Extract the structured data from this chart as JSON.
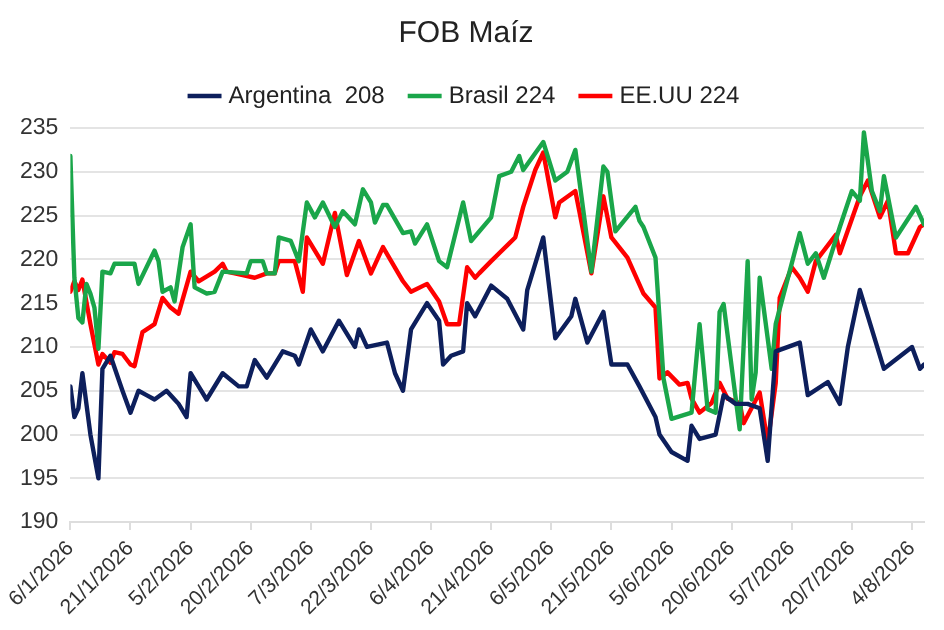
{
  "chart_data": {
    "type": "line",
    "title": "FOB Maíz",
    "xlim": [
      "2026-01-06",
      "2026-08-07"
    ],
    "xticks": [
      {
        "value": "2026-01-06",
        "label": "6/1/2026"
      },
      {
        "value": "2026-01-21",
        "label": "21/1/2026"
      },
      {
        "value": "2026-02-05",
        "label": "5/2/2026"
      },
      {
        "value": "2026-02-20",
        "label": "20/2/2026"
      },
      {
        "value": "2026-03-07",
        "label": "7/3/2026"
      },
      {
        "value": "2026-03-22",
        "label": "22/3/2026"
      },
      {
        "value": "2026-04-06",
        "label": "6/4/2026"
      },
      {
        "value": "2026-04-21",
        "label": "21/4/2026"
      },
      {
        "value": "2026-05-06",
        "label": "6/5/2026"
      },
      {
        "value": "2026-05-21",
        "label": "21/5/2026"
      },
      {
        "value": "2026-06-05",
        "label": "5/6/2026"
      },
      {
        "value": "2026-06-20",
        "label": "20/6/2026"
      },
      {
        "value": "2026-07-05",
        "label": "5/7/2026"
      },
      {
        "value": "2026-07-20",
        "label": "20/7/2026"
      },
      {
        "value": "2026-08-04",
        "label": "4/8/2026"
      }
    ],
    "ylim": [
      190,
      235
    ],
    "yticks": [
      190,
      195,
      200,
      205,
      210,
      215,
      220,
      225,
      230,
      235
    ],
    "grid": "y",
    "legend": "top",
    "marker": "none",
    "line_style": "solid",
    "series": [
      {
        "name": "Argentina  208",
        "color": "#0d1f5c",
        "x": [
          "2026-01-06",
          "2026-01-07",
          "2026-01-08",
          "2026-01-09",
          "2026-01-11",
          "2026-01-13",
          "2026-01-14",
          "2026-01-16",
          "2026-01-19",
          "2026-01-21",
          "2026-01-23",
          "2026-01-25",
          "2026-01-27",
          "2026-01-30",
          "2026-02-01",
          "2026-02-02",
          "2026-02-04",
          "2026-02-05",
          "2026-02-07",
          "2026-02-09",
          "2026-02-13",
          "2026-02-17",
          "2026-02-19",
          "2026-02-21",
          "2026-02-24",
          "2026-02-28",
          "2026-03-03",
          "2026-03-04",
          "2026-03-07",
          "2026-03-10",
          "2026-03-14",
          "2026-03-18",
          "2026-03-19",
          "2026-03-21",
          "2026-03-26",
          "2026-03-28",
          "2026-03-30",
          "2026-04-01",
          "2026-04-05",
          "2026-04-08",
          "2026-04-09",
          "2026-04-11",
          "2026-04-14",
          "2026-04-15",
          "2026-04-17",
          "2026-04-21",
          "2026-04-25",
          "2026-04-29",
          "2026-04-30",
          "2026-05-04",
          "2026-05-07",
          "2026-05-11",
          "2026-05-12",
          "2026-05-15",
          "2026-05-19",
          "2026-05-21",
          "2026-05-25",
          "2026-05-28",
          "2026-06-01",
          "2026-06-02",
          "2026-06-05",
          "2026-06-09",
          "2026-06-10",
          "2026-06-12",
          "2026-06-16",
          "2026-06-18",
          "2026-06-21",
          "2026-06-24",
          "2026-06-27",
          "2026-06-29",
          "2026-07-01",
          "2026-07-07",
          "2026-07-09",
          "2026-07-14",
          "2026-07-17",
          "2026-07-19",
          "2026-07-22",
          "2026-07-24",
          "2026-07-28",
          "2026-08-04",
          "2026-08-06",
          "2026-08-07"
        ],
        "values": [
          205.5,
          202,
          203,
          207,
          200,
          195,
          207.5,
          209,
          205,
          202.5,
          205,
          204.5,
          204,
          205,
          204,
          203.5,
          202,
          207,
          205.5,
          204,
          207,
          205.5,
          205.5,
          208.5,
          206.5,
          209.5,
          209,
          208,
          212,
          209.5,
          213,
          210,
          212,
          210,
          210.5,
          207,
          205,
          212,
          215,
          213,
          208,
          209,
          209.5,
          215,
          213.5,
          217,
          215.5,
          212,
          216.5,
          222.5,
          211,
          213.5,
          215.5,
          210.5,
          214,
          208,
          208,
          205.5,
          202,
          200,
          198,
          197,
          201,
          199.5,
          200,
          204.5,
          203.5,
          203.5,
          203,
          197,
          209.5,
          210.5,
          204.5,
          206,
          203.5,
          210,
          216.5,
          213.5,
          207.5,
          210,
          207.5,
          208
        ]
      },
      {
        "name": "Brasil 224",
        "color": "#1aa64a",
        "x": [
          "2026-01-06",
          "2026-01-07",
          "2026-01-08",
          "2026-01-09",
          "2026-01-10",
          "2026-01-11",
          "2026-01-12",
          "2026-01-13",
          "2026-01-14",
          "2026-01-16",
          "2026-01-17",
          "2026-01-22",
          "2026-01-23",
          "2026-01-27",
          "2026-01-28",
          "2026-01-29",
          "2026-01-31",
          "2026-02-01",
          "2026-02-03",
          "2026-02-05",
          "2026-02-06",
          "2026-02-09",
          "2026-02-11",
          "2026-02-13",
          "2026-02-19",
          "2026-02-20",
          "2026-02-23",
          "2026-02-24",
          "2026-02-26",
          "2026-02-27",
          "2026-03-02",
          "2026-03-04",
          "2026-03-06",
          "2026-03-08",
          "2026-03-10",
          "2026-03-13",
          "2026-03-15",
          "2026-03-18",
          "2026-03-20",
          "2026-03-22",
          "2026-03-23",
          "2026-03-25",
          "2026-03-26",
          "2026-03-30",
          "2026-04-01",
          "2026-04-02",
          "2026-04-05",
          "2026-04-08",
          "2026-04-10",
          "2026-04-14",
          "2026-04-16",
          "2026-04-21",
          "2026-04-23",
          "2026-04-26",
          "2026-04-28",
          "2026-04-29",
          "2026-05-04",
          "2026-05-07",
          "2026-05-10",
          "2026-05-12",
          "2026-05-16",
          "2026-05-19",
          "2026-05-20",
          "2026-05-22",
          "2026-05-27",
          "2026-05-28",
          "2026-05-29",
          "2026-06-01",
          "2026-06-03",
          "2026-06-05",
          "2026-06-10",
          "2026-06-12",
          "2026-06-14",
          "2026-06-16",
          "2026-06-17",
          "2026-06-18",
          "2026-06-22",
          "2026-06-24",
          "2026-06-25",
          "2026-06-26",
          "2026-06-27",
          "2026-06-30",
          "2026-07-01",
          "2026-07-07",
          "2026-07-09",
          "2026-07-11",
          "2026-07-13",
          "2026-07-17",
          "2026-07-20",
          "2026-07-22",
          "2026-07-23",
          "2026-07-25",
          "2026-07-27",
          "2026-07-28",
          "2026-07-31",
          "2026-08-05",
          "2026-08-07"
        ],
        "values": [
          231.8,
          217.9,
          213.3,
          212.8,
          217.2,
          216.1,
          214.5,
          209.8,
          218.6,
          218.4,
          219.5,
          219.5,
          217.2,
          221,
          219.8,
          216.3,
          216.8,
          215.2,
          221.4,
          224,
          216.8,
          216.1,
          216.3,
          218.6,
          218.4,
          219.8,
          219.8,
          218.4,
          218.4,
          222.5,
          222.1,
          219.8,
          226.5,
          224.8,
          226.5,
          223.7,
          225.5,
          224,
          228,
          226.5,
          224.2,
          226.2,
          226.2,
          223,
          223.2,
          221.8,
          224,
          219.8,
          219.1,
          226.5,
          222.1,
          224.8,
          229.5,
          230,
          231.8,
          230.2,
          233.4,
          229,
          230,
          232.5,
          218.6,
          230.6,
          230,
          223.2,
          226,
          224.4,
          223.7,
          220.2,
          206.4,
          201.8,
          202.5,
          212.6,
          202.9,
          202.5,
          214,
          214.9,
          200.6,
          219.8,
          204,
          207.1,
          217.9,
          207.5,
          212.6,
          223,
          219.5,
          220.7,
          217.9,
          223.7,
          227.8,
          226.7,
          234.5,
          227.8,
          225.5,
          229.5,
          222.5,
          226,
          224
        ]
      },
      {
        "name": "EE.UU 224",
        "color": "#ff0000",
        "x": [
          "2026-01-06",
          "2026-01-07",
          "2026-01-08",
          "2026-01-09",
          "2026-01-11",
          "2026-01-13",
          "2026-01-14",
          "2026-01-16",
          "2026-01-17",
          "2026-01-19",
          "2026-01-21",
          "2026-01-22",
          "2026-01-24",
          "2026-01-27",
          "2026-01-29",
          "2026-01-31",
          "2026-02-02",
          "2026-02-05",
          "2026-02-07",
          "2026-02-11",
          "2026-02-13",
          "2026-02-14",
          "2026-02-18",
          "2026-02-21",
          "2026-02-24",
          "2026-02-26",
          "2026-02-27",
          "2026-03-03",
          "2026-03-05",
          "2026-03-06",
          "2026-03-10",
          "2026-03-13",
          "2026-03-16",
          "2026-03-19",
          "2026-03-22",
          "2026-03-25",
          "2026-03-30",
          "2026-04-01",
          "2026-04-05",
          "2026-04-08",
          "2026-04-10",
          "2026-04-13",
          "2026-04-15",
          "2026-04-17",
          "2026-04-18",
          "2026-04-21",
          "2026-04-27",
          "2026-04-29",
          "2026-05-02",
          "2026-05-04",
          "2026-05-07",
          "2026-05-08",
          "2026-05-12",
          "2026-05-13",
          "2026-05-16",
          "2026-05-19",
          "2026-05-21",
          "2026-05-25",
          "2026-05-29",
          "2026-06-01",
          "2026-06-02",
          "2026-06-04",
          "2026-06-07",
          "2026-06-09",
          "2026-06-10",
          "2026-06-12",
          "2026-06-15",
          "2026-06-17",
          "2026-06-19",
          "2026-06-22",
          "2026-06-23",
          "2026-06-27",
          "2026-06-29",
          "2026-07-01",
          "2026-07-02",
          "2026-07-05",
          "2026-07-07",
          "2026-07-09",
          "2026-07-11",
          "2026-07-16",
          "2026-07-17",
          "2026-07-22",
          "2026-07-24",
          "2026-07-27",
          "2026-07-29",
          "2026-07-31",
          "2026-08-03",
          "2026-08-06",
          "2026-08-07"
        ],
        "values": [
          216.3,
          217.5,
          216.5,
          217.7,
          212.6,
          208,
          209.2,
          208.2,
          209.4,
          209.2,
          208,
          207.8,
          211.7,
          212.6,
          215.6,
          214.5,
          213.8,
          218.6,
          217.5,
          218.6,
          219.5,
          218.6,
          218.2,
          217.9,
          218.4,
          218.4,
          219.8,
          219.8,
          216.3,
          222.5,
          219.5,
          225.3,
          218.2,
          222.1,
          218.4,
          221.4,
          217.5,
          216.3,
          217.2,
          215.2,
          212.6,
          212.6,
          219.1,
          217.9,
          218.4,
          219.8,
          222.5,
          226,
          230.2,
          232.2,
          224.8,
          226.5,
          227.8,
          225.5,
          218.4,
          227.2,
          222.5,
          220.2,
          216.1,
          214.5,
          206.4,
          207.1,
          205.7,
          205.9,
          204.1,
          202.5,
          203.6,
          205.9,
          204.1,
          203.6,
          201.3,
          204.8,
          199,
          205.9,
          215.6,
          219.1,
          217.9,
          216.3,
          219.8,
          222.8,
          220.7,
          227.2,
          229,
          224.8,
          226.7,
          220.7,
          220.7,
          223.7,
          224
        ]
      }
    ]
  }
}
